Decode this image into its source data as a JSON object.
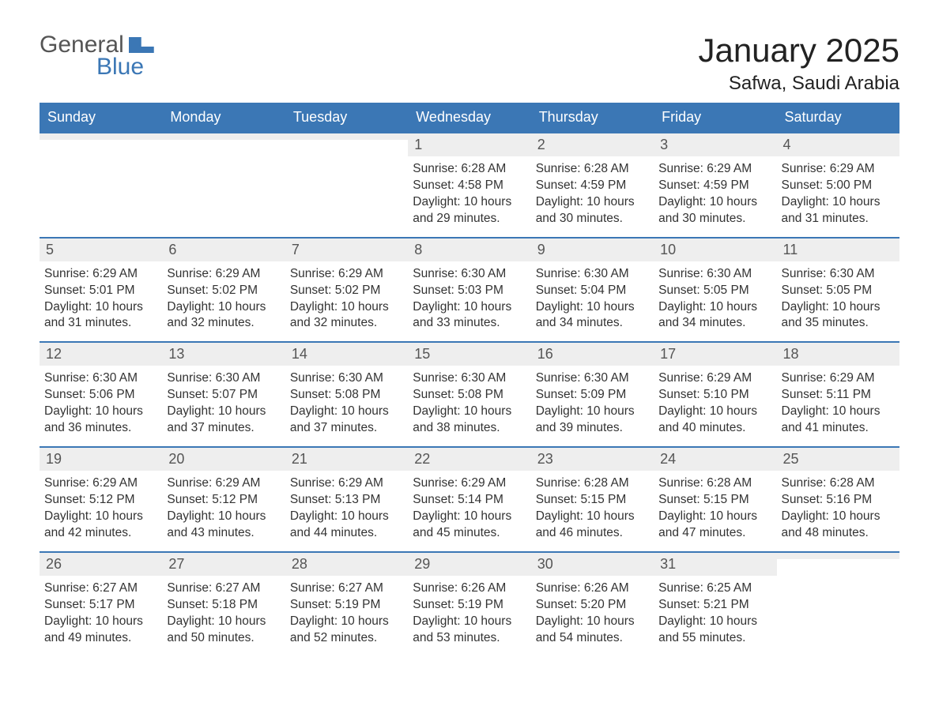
{
  "logo": {
    "general": "General",
    "blue": "Blue"
  },
  "title": "January 2025",
  "location": "Safwa, Saudi Arabia",
  "colors": {
    "accent": "#3b77b5",
    "daynum_bg": "#eeeeee",
    "text": "#333333",
    "logo_gray": "#555555",
    "background": "#ffffff"
  },
  "weekdays": [
    "Sunday",
    "Monday",
    "Tuesday",
    "Wednesday",
    "Thursday",
    "Friday",
    "Saturday"
  ],
  "weeks": [
    [
      {
        "n": "",
        "sr": "",
        "ss": "",
        "dl": ""
      },
      {
        "n": "",
        "sr": "",
        "ss": "",
        "dl": ""
      },
      {
        "n": "",
        "sr": "",
        "ss": "",
        "dl": ""
      },
      {
        "n": "1",
        "sr": "Sunrise: 6:28 AM",
        "ss": "Sunset: 4:58 PM",
        "dl": "Daylight: 10 hours and 29 minutes."
      },
      {
        "n": "2",
        "sr": "Sunrise: 6:28 AM",
        "ss": "Sunset: 4:59 PM",
        "dl": "Daylight: 10 hours and 30 minutes."
      },
      {
        "n": "3",
        "sr": "Sunrise: 6:29 AM",
        "ss": "Sunset: 4:59 PM",
        "dl": "Daylight: 10 hours and 30 minutes."
      },
      {
        "n": "4",
        "sr": "Sunrise: 6:29 AM",
        "ss": "Sunset: 5:00 PM",
        "dl": "Daylight: 10 hours and 31 minutes."
      }
    ],
    [
      {
        "n": "5",
        "sr": "Sunrise: 6:29 AM",
        "ss": "Sunset: 5:01 PM",
        "dl": "Daylight: 10 hours and 31 minutes."
      },
      {
        "n": "6",
        "sr": "Sunrise: 6:29 AM",
        "ss": "Sunset: 5:02 PM",
        "dl": "Daylight: 10 hours and 32 minutes."
      },
      {
        "n": "7",
        "sr": "Sunrise: 6:29 AM",
        "ss": "Sunset: 5:02 PM",
        "dl": "Daylight: 10 hours and 32 minutes."
      },
      {
        "n": "8",
        "sr": "Sunrise: 6:30 AM",
        "ss": "Sunset: 5:03 PM",
        "dl": "Daylight: 10 hours and 33 minutes."
      },
      {
        "n": "9",
        "sr": "Sunrise: 6:30 AM",
        "ss": "Sunset: 5:04 PM",
        "dl": "Daylight: 10 hours and 34 minutes."
      },
      {
        "n": "10",
        "sr": "Sunrise: 6:30 AM",
        "ss": "Sunset: 5:05 PM",
        "dl": "Daylight: 10 hours and 34 minutes."
      },
      {
        "n": "11",
        "sr": "Sunrise: 6:30 AM",
        "ss": "Sunset: 5:05 PM",
        "dl": "Daylight: 10 hours and 35 minutes."
      }
    ],
    [
      {
        "n": "12",
        "sr": "Sunrise: 6:30 AM",
        "ss": "Sunset: 5:06 PM",
        "dl": "Daylight: 10 hours and 36 minutes."
      },
      {
        "n": "13",
        "sr": "Sunrise: 6:30 AM",
        "ss": "Sunset: 5:07 PM",
        "dl": "Daylight: 10 hours and 37 minutes."
      },
      {
        "n": "14",
        "sr": "Sunrise: 6:30 AM",
        "ss": "Sunset: 5:08 PM",
        "dl": "Daylight: 10 hours and 37 minutes."
      },
      {
        "n": "15",
        "sr": "Sunrise: 6:30 AM",
        "ss": "Sunset: 5:08 PM",
        "dl": "Daylight: 10 hours and 38 minutes."
      },
      {
        "n": "16",
        "sr": "Sunrise: 6:30 AM",
        "ss": "Sunset: 5:09 PM",
        "dl": "Daylight: 10 hours and 39 minutes."
      },
      {
        "n": "17",
        "sr": "Sunrise: 6:29 AM",
        "ss": "Sunset: 5:10 PM",
        "dl": "Daylight: 10 hours and 40 minutes."
      },
      {
        "n": "18",
        "sr": "Sunrise: 6:29 AM",
        "ss": "Sunset: 5:11 PM",
        "dl": "Daylight: 10 hours and 41 minutes."
      }
    ],
    [
      {
        "n": "19",
        "sr": "Sunrise: 6:29 AM",
        "ss": "Sunset: 5:12 PM",
        "dl": "Daylight: 10 hours and 42 minutes."
      },
      {
        "n": "20",
        "sr": "Sunrise: 6:29 AM",
        "ss": "Sunset: 5:12 PM",
        "dl": "Daylight: 10 hours and 43 minutes."
      },
      {
        "n": "21",
        "sr": "Sunrise: 6:29 AM",
        "ss": "Sunset: 5:13 PM",
        "dl": "Daylight: 10 hours and 44 minutes."
      },
      {
        "n": "22",
        "sr": "Sunrise: 6:29 AM",
        "ss": "Sunset: 5:14 PM",
        "dl": "Daylight: 10 hours and 45 minutes."
      },
      {
        "n": "23",
        "sr": "Sunrise: 6:28 AM",
        "ss": "Sunset: 5:15 PM",
        "dl": "Daylight: 10 hours and 46 minutes."
      },
      {
        "n": "24",
        "sr": "Sunrise: 6:28 AM",
        "ss": "Sunset: 5:15 PM",
        "dl": "Daylight: 10 hours and 47 minutes."
      },
      {
        "n": "25",
        "sr": "Sunrise: 6:28 AM",
        "ss": "Sunset: 5:16 PM",
        "dl": "Daylight: 10 hours and 48 minutes."
      }
    ],
    [
      {
        "n": "26",
        "sr": "Sunrise: 6:27 AM",
        "ss": "Sunset: 5:17 PM",
        "dl": "Daylight: 10 hours and 49 minutes."
      },
      {
        "n": "27",
        "sr": "Sunrise: 6:27 AM",
        "ss": "Sunset: 5:18 PM",
        "dl": "Daylight: 10 hours and 50 minutes."
      },
      {
        "n": "28",
        "sr": "Sunrise: 6:27 AM",
        "ss": "Sunset: 5:19 PM",
        "dl": "Daylight: 10 hours and 52 minutes."
      },
      {
        "n": "29",
        "sr": "Sunrise: 6:26 AM",
        "ss": "Sunset: 5:19 PM",
        "dl": "Daylight: 10 hours and 53 minutes."
      },
      {
        "n": "30",
        "sr": "Sunrise: 6:26 AM",
        "ss": "Sunset: 5:20 PM",
        "dl": "Daylight: 10 hours and 54 minutes."
      },
      {
        "n": "31",
        "sr": "Sunrise: 6:25 AM",
        "ss": "Sunset: 5:21 PM",
        "dl": "Daylight: 10 hours and 55 minutes."
      },
      {
        "n": "",
        "sr": "",
        "ss": "",
        "dl": ""
      }
    ]
  ]
}
